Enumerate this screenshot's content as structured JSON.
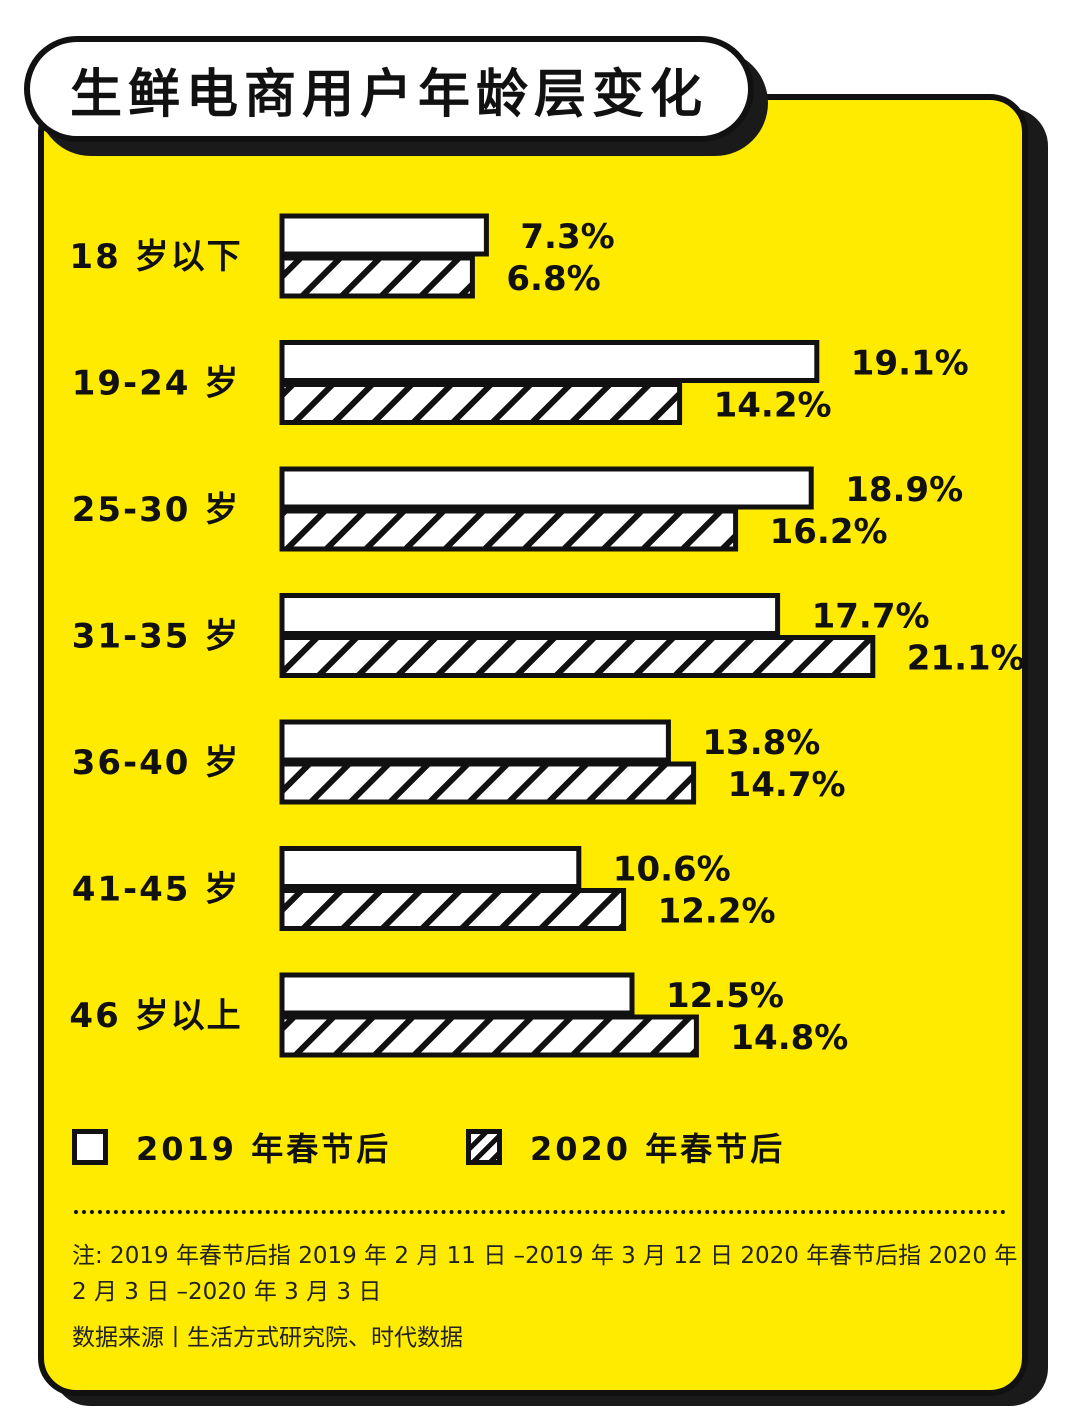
{
  "title": "生鲜电商用户年龄层变化",
  "legend": {
    "series_2019": "2019 年春节后",
    "series_2020": "2020 年春节后"
  },
  "note": "注: 2019 年春节后指 2019 年 2 月 11 日 –2019 年 3 月 12 日 2020 年春节后指 2020 年 2 月 3 日 –2020 年 3 月 3 日",
  "source": "数据来源丨生活方式研究院、时代数据",
  "colors": {
    "background": "#FFEB00",
    "ink": "#111111",
    "bar_fill": "#ffffff"
  },
  "chart_data": {
    "type": "bar",
    "orientation": "horizontal",
    "categories": [
      "18 岁以下",
      "19-24 岁",
      "25-30 岁",
      "31-35 岁",
      "36-40 岁",
      "41-45 岁",
      "46 岁以上"
    ],
    "series": [
      {
        "name": "2019 年春节后",
        "pattern": "solid-white",
        "values": [
          7.3,
          19.1,
          18.9,
          17.7,
          13.8,
          10.6,
          12.5
        ],
        "labels": [
          "7.3%",
          "19.1%",
          "18.9%",
          "17.7%",
          "13.8%",
          "10.6%",
          "12.5%"
        ]
      },
      {
        "name": "2020 年春节后",
        "pattern": "diagonal-hatch",
        "values": [
          6.8,
          14.2,
          16.2,
          21.1,
          14.7,
          12.2,
          14.8
        ],
        "labels": [
          "6.8%",
          "14.2%",
          "16.2%",
          "21.1%",
          "14.7%",
          "12.2%",
          "14.8%"
        ]
      }
    ],
    "unit": "%",
    "legend_position": "bottom-left",
    "grid": false
  }
}
